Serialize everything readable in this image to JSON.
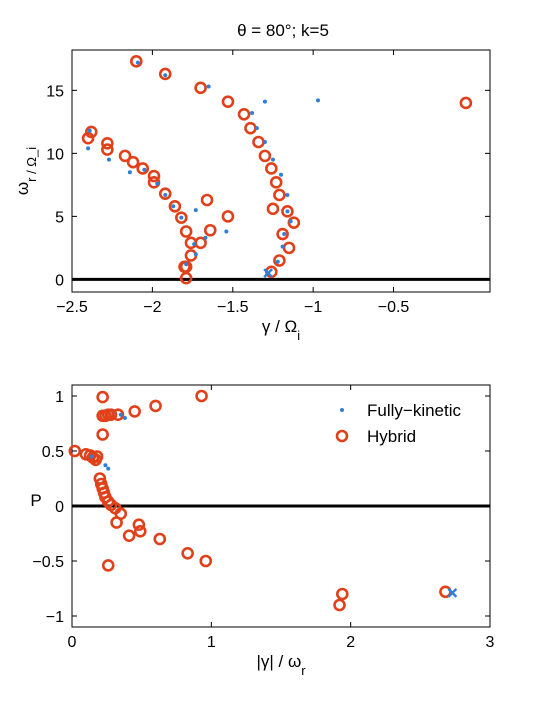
{
  "figure": {
    "title": "θ = 80°; k=5"
  },
  "colors": {
    "fully_kinetic": "#2f7fd6",
    "hybrid": "#e0401a",
    "axis": "#000000"
  },
  "chart_data": [
    {
      "type": "scatter",
      "title": "θ = 80°; k=5",
      "xlabel": "γ / Ω_i",
      "ylabel": "ω_r / Ω_i",
      "xlim": [
        -2.5,
        0.1
      ],
      "ylim": [
        -1,
        18.2
      ],
      "xticks": [
        -2.5,
        -2,
        -1.5,
        -1,
        -0.5
      ],
      "xtick_labels": [
        "−2.5",
        "−2",
        "−1.5",
        "−1",
        "−0.5"
      ],
      "yticks": [
        0,
        5,
        10,
        15
      ],
      "ytick_labels": [
        "0",
        "5",
        "10",
        "15"
      ],
      "hline": 0,
      "grid": false,
      "series": [
        {
          "name": "Fully-kinetic",
          "marker": "dot",
          "points": [
            [
              -2.09,
              17.2
            ],
            [
              -1.92,
              16.2
            ],
            [
              -1.65,
              15.3
            ],
            [
              -1.3,
              14.1
            ],
            [
              -0.97,
              14.2
            ],
            [
              -2.39,
              11.8
            ],
            [
              -2.4,
              10.4
            ],
            [
              -2.27,
              9.5
            ],
            [
              -2.14,
              8.5
            ],
            [
              -2.05,
              8.7
            ],
            [
              -1.97,
              7.6
            ],
            [
              -1.92,
              6.7
            ],
            [
              -1.87,
              5.8
            ],
            [
              -1.82,
              4.9
            ],
            [
              -1.73,
              5.5
            ],
            [
              -1.54,
              3.8
            ],
            [
              -1.67,
              3.3
            ],
            [
              -1.74,
              2.8
            ],
            [
              -1.73,
              2.0
            ],
            [
              -1.79,
              1.2
            ],
            [
              -1.38,
              13.2
            ],
            [
              -1.35,
              12.0
            ],
            [
              -1.3,
              10.9
            ],
            [
              -1.25,
              9.5
            ],
            [
              -1.2,
              8.3
            ],
            [
              -1.16,
              6.7
            ],
            [
              -1.16,
              5.4
            ],
            [
              -1.14,
              4.6
            ],
            [
              -1.18,
              3.6
            ],
            [
              -1.19,
              2.6
            ],
            [
              -1.22,
              1.4
            ]
          ]
        },
        {
          "name": "Hybrid",
          "marker": "circle",
          "points": [
            [
              -2.1,
              17.3
            ],
            [
              -1.92,
              16.3
            ],
            [
              -1.7,
              15.2
            ],
            [
              -1.53,
              14.1
            ],
            [
              -0.05,
              14.0
            ],
            [
              -2.38,
              11.7
            ],
            [
              -2.4,
              11.2
            ],
            [
              -2.28,
              10.8
            ],
            [
              -2.28,
              10.3
            ],
            [
              -2.17,
              9.8
            ],
            [
              -2.12,
              9.3
            ],
            [
              -2.06,
              8.8
            ],
            [
              -1.99,
              8.2
            ],
            [
              -1.99,
              7.7
            ],
            [
              -1.92,
              6.8
            ],
            [
              -1.86,
              5.8
            ],
            [
              -1.82,
              4.9
            ],
            [
              -1.66,
              6.3
            ],
            [
              -1.53,
              5.0
            ],
            [
              -1.79,
              3.8
            ],
            [
              -1.64,
              3.9
            ],
            [
              -1.7,
              2.9
            ],
            [
              -1.76,
              2.9
            ],
            [
              -1.76,
              1.9
            ],
            [
              -1.79,
              1.0
            ],
            [
              -1.8,
              1.0
            ],
            [
              -1.79,
              0.1
            ],
            [
              -1.43,
              13.1
            ],
            [
              -1.39,
              12.0
            ],
            [
              -1.34,
              10.9
            ],
            [
              -1.3,
              9.8
            ],
            [
              -1.26,
              8.8
            ],
            [
              -1.23,
              7.7
            ],
            [
              -1.21,
              6.7
            ],
            [
              -1.25,
              5.6
            ],
            [
              -1.16,
              5.4
            ],
            [
              -1.12,
              4.5
            ],
            [
              -1.19,
              3.6
            ],
            [
              -1.15,
              2.5
            ],
            [
              -1.21,
              1.5
            ],
            [
              -1.26,
              0.6
            ]
          ]
        },
        {
          "name": "",
          "marker": "x",
          "points": [
            [
              -1.28,
              0.5
            ]
          ]
        }
      ]
    },
    {
      "type": "scatter",
      "title": "",
      "xlabel": "|γ| / ω_r",
      "ylabel": "P",
      "xlim": [
        0,
        3
      ],
      "ylim": [
        -1.1,
        1.1
      ],
      "xticks": [
        0,
        1,
        2,
        3
      ],
      "xtick_labels": [
        "0",
        "1",
        "2",
        "3"
      ],
      "yticks": [
        -1,
        -0.5,
        0,
        0.5,
        1
      ],
      "ytick_labels": [
        "−1",
        "−0.5",
        "0",
        "0.5",
        "1"
      ],
      "hline": 0,
      "grid": false,
      "legend": {
        "position": "top-right",
        "entries": [
          {
            "label": "Fully−kinetic",
            "marker": "dot"
          },
          {
            "label": "Hybrid",
            "marker": "circle"
          }
        ]
      },
      "series": [
        {
          "name": "Fully-kinetic",
          "marker": "dot",
          "points": [
            [
              0.24,
              0.37
            ],
            [
              0.26,
              0.34
            ],
            [
              0.35,
              0.83
            ],
            [
              0.38,
              0.8
            ],
            [
              0.14,
              0.45
            ]
          ]
        },
        {
          "name": "Hybrid",
          "marker": "circle",
          "points": [
            [
              0.02,
              0.5
            ],
            [
              0.1,
              0.47
            ],
            [
              0.13,
              0.46
            ],
            [
              0.15,
              0.44
            ],
            [
              0.17,
              0.42
            ],
            [
              0.18,
              0.45
            ],
            [
              0.22,
              0.99
            ],
            [
              0.22,
              0.82
            ],
            [
              0.24,
              0.82
            ],
            [
              0.26,
              0.83
            ],
            [
              0.28,
              0.83
            ],
            [
              0.33,
              0.83
            ],
            [
              0.45,
              0.86
            ],
            [
              0.6,
              0.91
            ],
            [
              0.93,
              1.0
            ],
            [
              0.22,
              0.65
            ],
            [
              0.2,
              0.25
            ],
            [
              0.21,
              0.2
            ],
            [
              0.22,
              0.16
            ],
            [
              0.23,
              0.12
            ],
            [
              0.24,
              0.08
            ],
            [
              0.26,
              0.04
            ],
            [
              0.28,
              0.01
            ],
            [
              0.31,
              -0.02
            ],
            [
              0.35,
              -0.07
            ],
            [
              0.32,
              -0.15
            ],
            [
              0.48,
              -0.17
            ],
            [
              0.49,
              -0.23
            ],
            [
              0.41,
              -0.27
            ],
            [
              0.63,
              -0.3
            ],
            [
              0.26,
              -0.54
            ],
            [
              0.83,
              -0.43
            ],
            [
              0.96,
              -0.5
            ],
            [
              1.94,
              -0.8
            ],
            [
              1.92,
              -0.9
            ],
            [
              2.68,
              -0.78
            ]
          ]
        },
        {
          "name": "",
          "marker": "x",
          "points": [
            [
              2.73,
              -0.79
            ]
          ]
        }
      ]
    }
  ]
}
